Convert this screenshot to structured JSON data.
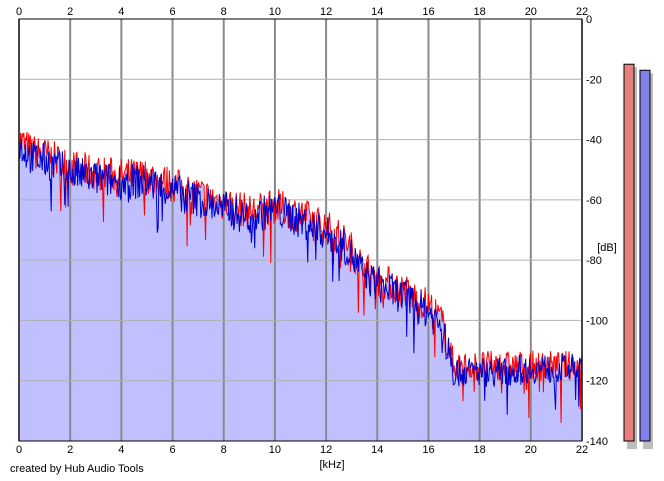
{
  "chart_data": {
    "type": "area",
    "xlabel": "[kHz]",
    "ylabel": "[dB]",
    "xlim": [
      0,
      22
    ],
    "ylim": [
      -140,
      0
    ],
    "x_ticks": [
      "0",
      "2",
      "4",
      "6",
      "8",
      "10",
      "12",
      "14",
      "16",
      "18",
      "20",
      "22"
    ],
    "y_ticks": [
      "0",
      "-20",
      "-40",
      "-60",
      "-80",
      "-100",
      "-120",
      "-140"
    ],
    "grid": true,
    "fill_color": "#c0c0ff",
    "series": [
      {
        "color": "#ff0000",
        "envelope": {
          "x": [
            0,
            0.5,
            1,
            2,
            3,
            4,
            5,
            6,
            7,
            8,
            9,
            10,
            11,
            12,
            12.8,
            13.5,
            14,
            15,
            16,
            16.5,
            17,
            18,
            19,
            20,
            21,
            22
          ],
          "y": [
            -40,
            -44,
            -45,
            -49,
            -51,
            -52,
            -52,
            -55,
            -58,
            -61,
            -64,
            -62,
            -65,
            -69,
            -74,
            -83,
            -86,
            -90,
            -95,
            -100,
            -115,
            -115,
            -115,
            -115,
            -115,
            -115
          ]
        }
      },
      {
        "color": "#0000cc",
        "envelope": {
          "x": [
            0,
            0.5,
            1,
            2,
            3,
            4,
            5,
            6,
            7,
            8,
            9,
            10,
            11,
            12,
            12.8,
            13.5,
            14,
            15,
            16,
            16.5,
            17,
            18,
            19,
            20,
            21,
            22
          ],
          "y": [
            -42,
            -46,
            -47,
            -51,
            -53,
            -54,
            -54,
            -57,
            -60,
            -63,
            -66,
            -63,
            -67,
            -71,
            -76,
            -85,
            -88,
            -92,
            -97,
            -102,
            -117,
            -117,
            -117,
            -116,
            -116,
            -116
          ]
        }
      }
    ]
  },
  "level_meters": [
    {
      "color": "#e88080",
      "level_db": -15
    },
    {
      "color": "#8080e8",
      "level_db": -17
    }
  ],
  "credit": "created by Hub Audio Tools"
}
